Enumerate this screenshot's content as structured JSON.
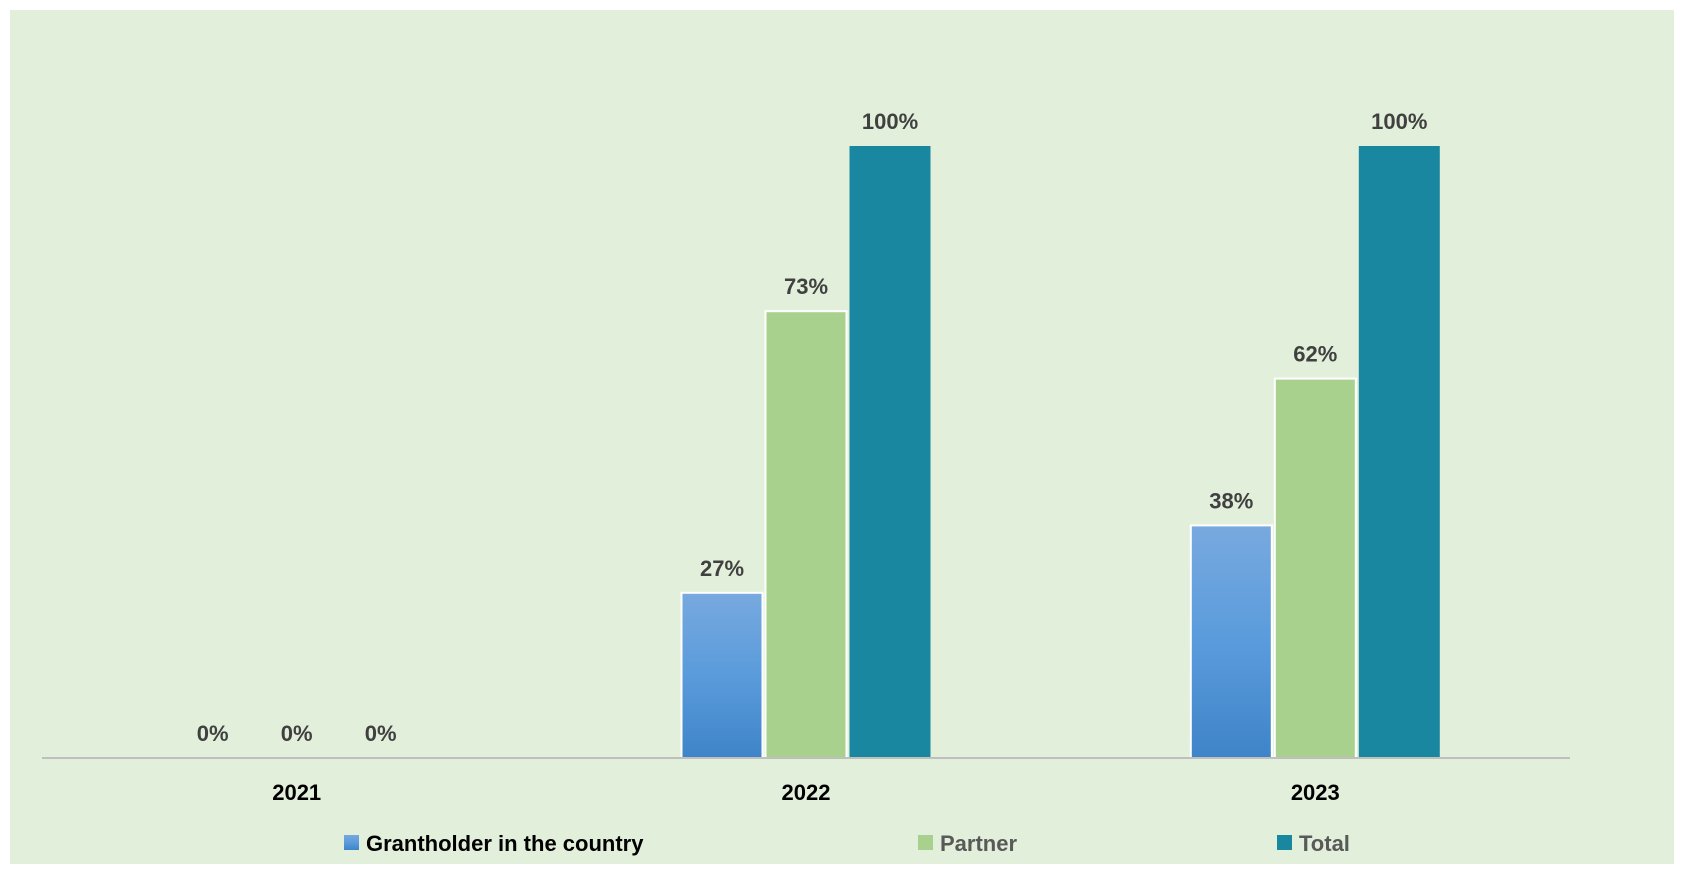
{
  "chart_data": {
    "type": "bar",
    "title": "",
    "xlabel": "",
    "ylabel": "",
    "categories": [
      "2021",
      "2022",
      "2023"
    ],
    "series": [
      {
        "name": "Grantholder in the country",
        "values": [
          0,
          27,
          38
        ],
        "labels": [
          "0%",
          "27%",
          "38%"
        ],
        "color": "#5b9bd5"
      },
      {
        "name": "Partner",
        "values": [
          0,
          73,
          62
        ],
        "labels": [
          "0%",
          "73%",
          "62%"
        ],
        "color": "#a9d18e"
      },
      {
        "name": "Total",
        "values": [
          0,
          100,
          100
        ],
        "labels": [
          "0%",
          "100%",
          "100%"
        ],
        "color": "#1a87a0"
      }
    ],
    "ylim": [
      0,
      100
    ],
    "grid": false,
    "legend": "bottom",
    "background": "#e2efda",
    "label_color": "#404040",
    "axis_color": "#bfbfbf"
  }
}
